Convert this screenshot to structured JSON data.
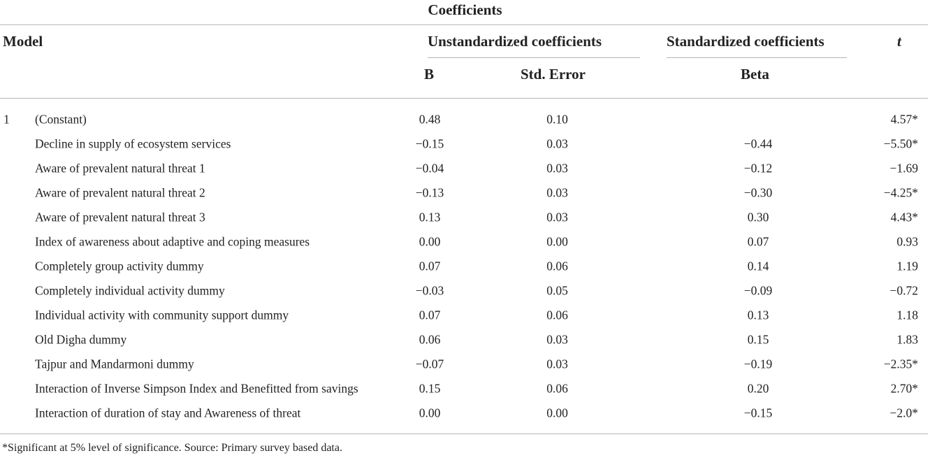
{
  "caption": "Coefficients",
  "headers": {
    "model": "Model",
    "unstandardized": "Unstandardized coefficients",
    "standardized": "Standardized coefficients",
    "t": "t",
    "b": "B",
    "std_error": "Std. Error",
    "beta": "Beta"
  },
  "rows": [
    {
      "model": "1",
      "variable": "(Constant)",
      "b": "0.48",
      "std_error": "0.10",
      "beta": "",
      "t": "4.57*"
    },
    {
      "model": "",
      "variable": "Decline in supply of ecosystem services",
      "b": "−0.15",
      "std_error": "0.03",
      "beta": "−0.44",
      "t": "−5.50*"
    },
    {
      "model": "",
      "variable": "Aware of prevalent natural threat 1",
      "b": "−0.04",
      "std_error": "0.03",
      "beta": "−0.12",
      "t": "−1.69"
    },
    {
      "model": "",
      "variable": "Aware of prevalent natural threat 2",
      "b": "−0.13",
      "std_error": "0.03",
      "beta": "−0.30",
      "t": "−4.25*"
    },
    {
      "model": "",
      "variable": "Aware of prevalent natural threat 3",
      "b": "0.13",
      "std_error": "0.03",
      "beta": "0.30",
      "t": "4.43*"
    },
    {
      "model": "",
      "variable": "Index of awareness about adaptive and coping measures",
      "b": "0.00",
      "std_error": "0.00",
      "beta": "0.07",
      "t": "0.93"
    },
    {
      "model": "",
      "variable": "Completely group activity dummy",
      "b": "0.07",
      "std_error": "0.06",
      "beta": "0.14",
      "t": "1.19"
    },
    {
      "model": "",
      "variable": "Completely individual activity dummy",
      "b": "−0.03",
      "std_error": "0.05",
      "beta": "−0.09",
      "t": "−0.72"
    },
    {
      "model": "",
      "variable": "Individual activity with community support dummy",
      "b": "0.07",
      "std_error": "0.06",
      "beta": "0.13",
      "t": "1.18"
    },
    {
      "model": "",
      "variable": "Old Digha dummy",
      "b": "0.06",
      "std_error": "0.03",
      "beta": "0.15",
      "t": "1.83"
    },
    {
      "model": "",
      "variable": "Tajpur and Mandarmoni dummy",
      "b": "−0.07",
      "std_error": "0.03",
      "beta": "−0.19",
      "t": "−2.35*"
    },
    {
      "model": "",
      "variable": "Interaction of Inverse Simpson Index and Benefitted from savings",
      "b": "0.15",
      "std_error": "0.06",
      "beta": "0.20",
      "t": "2.70*"
    },
    {
      "model": "",
      "variable": "Interaction of duration of stay and Awareness of threat",
      "b": "0.00",
      "std_error": "0.00",
      "beta": "−0.15",
      "t": "−2.0*"
    }
  ],
  "footnote": "*Significant at 5% level of significance. Source: Primary survey based data."
}
